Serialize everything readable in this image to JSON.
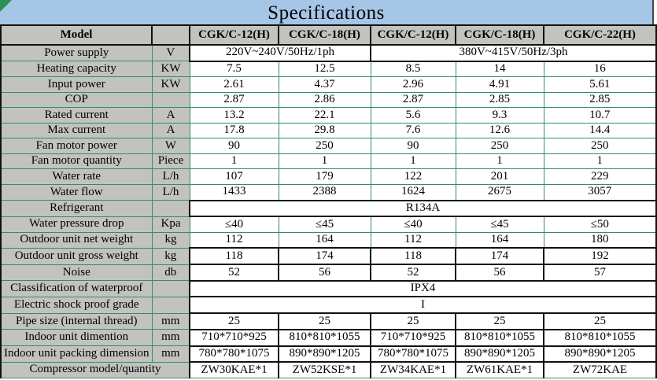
{
  "title": "Specifications",
  "colors": {
    "title_band": "#a5c6e6",
    "header_bg": "#c2c2bf",
    "grid_green": "#2f8f6d",
    "border_black": "#111111",
    "corner_triangle": "#2a9055"
  },
  "table": {
    "header": {
      "model_label": "Model",
      "unit_header": "",
      "columns": [
        "CGK/C-12(H)",
        "CGK/C-18(H)",
        "CGK/C-12(H)",
        "CGK/C-18(H)",
        "CGK/C-22(H)"
      ]
    },
    "rows": [
      {
        "label": "Power supply",
        "unit": "V",
        "style": "b",
        "cells": [
          {
            "t": "220V~240V/50Hz/1ph",
            "s": 2
          },
          {
            "t": "380V~415V/50Hz/3ph",
            "s": 3
          }
        ]
      },
      {
        "label": "Heating capacity",
        "unit": "KW",
        "style": "g",
        "cells": [
          {
            "t": "7.5"
          },
          {
            "t": "12.5"
          },
          {
            "t": "8.5"
          },
          {
            "t": "14"
          },
          {
            "t": "16"
          }
        ]
      },
      {
        "label": "Input power",
        "unit": "KW",
        "style": "g",
        "cells": [
          {
            "t": "2.61"
          },
          {
            "t": "4.37"
          },
          {
            "t": "2.96"
          },
          {
            "t": "4.91"
          },
          {
            "t": "5.61"
          }
        ]
      },
      {
        "label": "COP",
        "unit": "",
        "style": "g",
        "cells": [
          {
            "t": "2.87"
          },
          {
            "t": "2.86"
          },
          {
            "t": "2.87"
          },
          {
            "t": "2.85"
          },
          {
            "t": "2.85"
          }
        ]
      },
      {
        "label": "Rated current",
        "unit": "A",
        "style": "g",
        "cells": [
          {
            "t": "13.2"
          },
          {
            "t": "22.1"
          },
          {
            "t": "5.6"
          },
          {
            "t": "9.3"
          },
          {
            "t": "10.7"
          }
        ]
      },
      {
        "label": "Max current",
        "unit": "A",
        "style": "g",
        "cells": [
          {
            "t": "17.8"
          },
          {
            "t": "29.8"
          },
          {
            "t": "7.6"
          },
          {
            "t": "12.6"
          },
          {
            "t": "14.4"
          }
        ]
      },
      {
        "label": "Fan motor power",
        "unit": "W",
        "style": "g",
        "cells": [
          {
            "t": "90"
          },
          {
            "t": "250"
          },
          {
            "t": "90"
          },
          {
            "t": "250"
          },
          {
            "t": "250"
          }
        ]
      },
      {
        "label": "Fan motor quantity",
        "unit": "Piece",
        "style": "g",
        "cells": [
          {
            "t": "1"
          },
          {
            "t": "1"
          },
          {
            "t": "1"
          },
          {
            "t": "1"
          },
          {
            "t": "1"
          }
        ]
      },
      {
        "label": "Water rate",
        "unit": "L/h",
        "style": "g",
        "cells": [
          {
            "t": "107"
          },
          {
            "t": "179"
          },
          {
            "t": "122"
          },
          {
            "t": "201"
          },
          {
            "t": "229"
          }
        ]
      },
      {
        "label": "Water flow",
        "unit": "L/h",
        "style": "g",
        "cells": [
          {
            "t": "1433"
          },
          {
            "t": "2388"
          },
          {
            "t": "1624"
          },
          {
            "t": "2675"
          },
          {
            "t": "3057"
          }
        ]
      },
      {
        "label": "Refrigerant",
        "unit": "",
        "style": "b",
        "cells": [
          {
            "t": "R134A",
            "s": 5
          }
        ]
      },
      {
        "label": "Water pressure drop",
        "unit": "Kpa",
        "style": "g",
        "cells": [
          {
            "t": "≤40"
          },
          {
            "t": "≤45"
          },
          {
            "t": "≤40"
          },
          {
            "t": "≤45"
          },
          {
            "t": "≤50"
          }
        ]
      },
      {
        "label": "Outdoor unit net weight",
        "unit": "kg",
        "style": "g",
        "cells": [
          {
            "t": "112"
          },
          {
            "t": "164"
          },
          {
            "t": "112"
          },
          {
            "t": "164"
          },
          {
            "t": "180"
          }
        ]
      },
      {
        "label": "Outdoor unit gross weight",
        "unit": "kg",
        "style": "b",
        "cells": [
          {
            "t": "118"
          },
          {
            "t": "174"
          },
          {
            "t": "118"
          },
          {
            "t": "174"
          },
          {
            "t": "192"
          }
        ]
      },
      {
        "label": "Noise",
        "unit": "db",
        "style": "b",
        "cells": [
          {
            "t": "52"
          },
          {
            "t": "56"
          },
          {
            "t": "52"
          },
          {
            "t": "56"
          },
          {
            "t": "57"
          }
        ]
      },
      {
        "label": "Classification of waterproof",
        "unit": "",
        "style": "b",
        "cells": [
          {
            "t": "IPX4",
            "s": 5
          }
        ]
      },
      {
        "label": "Electric shock proof grade",
        "unit": "",
        "style": "b",
        "cells": [
          {
            "t": "I",
            "s": 5
          }
        ]
      },
      {
        "label": "Pipe size (internal thread)",
        "unit": "mm",
        "style": "b",
        "cells": [
          {
            "t": "25"
          },
          {
            "t": "25"
          },
          {
            "t": "25"
          },
          {
            "t": "25"
          },
          {
            "t": "25"
          }
        ]
      },
      {
        "label": "Indoor unit dimention",
        "unit": "mm",
        "style": "b",
        "cells": [
          {
            "t": "710*710*925"
          },
          {
            "t": "810*810*1055"
          },
          {
            "t": "710*710*925"
          },
          {
            "t": "810*810*1055"
          },
          {
            "t": "810*810*1055"
          }
        ]
      },
      {
        "label": "Indoor unit packing dimension",
        "unit": "mm",
        "style": "b",
        "cells": [
          {
            "t": "780*780*1075"
          },
          {
            "t": "890*890*1205"
          },
          {
            "t": "780*780*1075"
          },
          {
            "t": "890*890*1205"
          },
          {
            "t": "890*890*1205"
          }
        ]
      },
      {
        "label": "Compressor model/quantity",
        "unit": null,
        "style": "bg",
        "cells": [
          {
            "t": "ZW30KAE*1"
          },
          {
            "t": "ZW52KSE*1"
          },
          {
            "t": "ZW34KAE*1"
          },
          {
            "t": "ZW61KAE*1"
          },
          {
            "t": "ZW72KAE"
          }
        ]
      }
    ]
  }
}
